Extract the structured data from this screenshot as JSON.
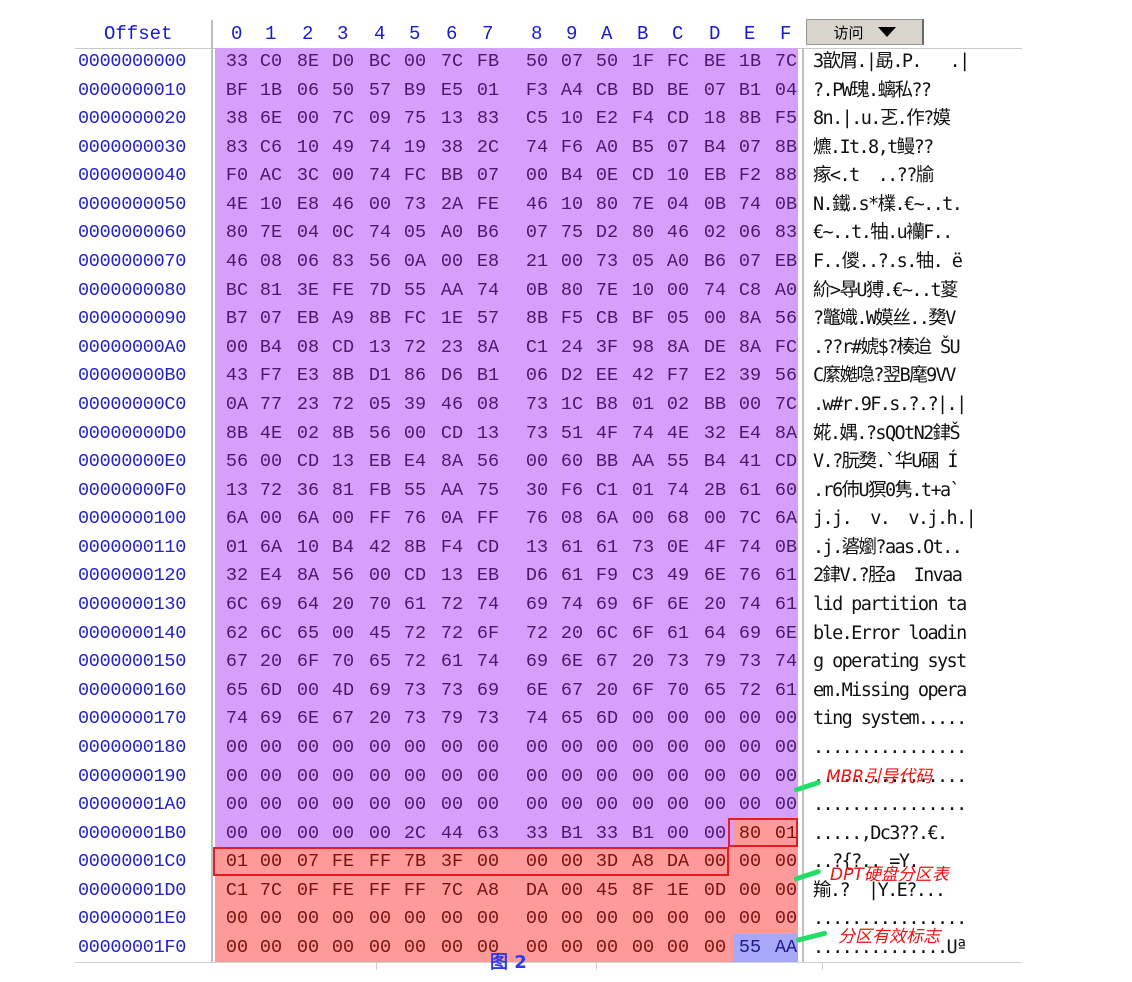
{
  "header": {
    "offset_label": "Offset",
    "hex_columns": [
      "0",
      "1",
      "2",
      "3",
      "4",
      "5",
      "6",
      "7",
      "8",
      "9",
      "A",
      "B",
      "C",
      "D",
      "E",
      "F"
    ],
    "access_button_label": "访问"
  },
  "colors": {
    "offset_text": "#2323c8",
    "mbr_boot_code_bg": "#d79ffc",
    "partition_table_bg": "#ff9a9a",
    "signature_bg": "#a8a8fa",
    "highlight_box": "#e41e1e",
    "annotation_text": "#ee1111",
    "leader_line": "#22dd66"
  },
  "rows": [
    {
      "offset": "0000000000",
      "hex": [
        "33",
        "C0",
        "8E",
        "D0",
        "BC",
        "00",
        "7C",
        "FB",
        "50",
        "07",
        "50",
        "1F",
        "FC",
        "BE",
        "1B",
        "7C"
      ],
      "text": "3歆屑.|勗.P.   .|"
    },
    {
      "offset": "0000000010",
      "hex": [
        "BF",
        "1B",
        "06",
        "50",
        "57",
        "B9",
        "E5",
        "01",
        "F3",
        "A4",
        "CB",
        "BD",
        "BE",
        "07",
        "B1",
        "04"
      ],
      "text": "?.PW瑰.螭私??"
    },
    {
      "offset": "0000000020",
      "hex": [
        "38",
        "6E",
        "00",
        "7C",
        "09",
        "75",
        "13",
        "83",
        "C5",
        "10",
        "E2",
        "F4",
        "CD",
        "18",
        "8B",
        "F5"
      ],
      "text": "8n.|.u.乤.作?嫫"
    },
    {
      "offset": "0000000030",
      "hex": [
        "83",
        "C6",
        "10",
        "49",
        "74",
        "19",
        "38",
        "2C",
        "74",
        "F6",
        "A0",
        "B5",
        "07",
        "B4",
        "07",
        "8B"
      ],
      "text": "爊.It.8,t鳗??"
    },
    {
      "offset": "0000000040",
      "hex": [
        "F0",
        "AC",
        "3C",
        "00",
        "74",
        "FC",
        "BB",
        "07",
        "00",
        "B4",
        "0E",
        "CD",
        "10",
        "EB",
        "F2",
        "88"
      ],
      "text": "瘃<.t  ..??牏"
    },
    {
      "offset": "0000000050",
      "hex": [
        "4E",
        "10",
        "E8",
        "46",
        "00",
        "73",
        "2A",
        "FE",
        "46",
        "10",
        "80",
        "7E",
        "04",
        "0B",
        "74",
        "0B"
      ],
      "text": "N.鐵.s*檏.€~..t."
    },
    {
      "offset": "0000000060",
      "hex": [
        "80",
        "7E",
        "04",
        "0C",
        "74",
        "05",
        "A0",
        "B6",
        "07",
        "75",
        "D2",
        "80",
        "46",
        "02",
        "06",
        "83"
      ],
      "text": "€~..t.牰.u襽F.."
    },
    {
      "offset": "0000000070",
      "hex": [
        "46",
        "08",
        "06",
        "83",
        "56",
        "0A",
        "00",
        "E8",
        "21",
        "00",
        "73",
        "05",
        "A0",
        "B6",
        "07",
        "EB"
      ],
      "text": "F..儍..?.s.牰. ë"
    },
    {
      "offset": "0000000080",
      "hex": [
        "BC",
        "81",
        "3E",
        "FE",
        "7D",
        "55",
        "AA",
        "74",
        "0B",
        "80",
        "7E",
        "10",
        "00",
        "74",
        "C8",
        "A0"
      ],
      "text": "紒>䙷U猼.€~..t葼"
    },
    {
      "offset": "0000000090",
      "hex": [
        "B7",
        "07",
        "EB",
        "A9",
        "8B",
        "FC",
        "1E",
        "57",
        "8B",
        "F5",
        "CB",
        "BF",
        "05",
        "00",
        "8A",
        "56"
      ],
      "text": "?鼈嬂.W嫫丝..奦V"
    },
    {
      "offset": "00000000A0",
      "hex": [
        "00",
        "B4",
        "08",
        "CD",
        "13",
        "72",
        "23",
        "8A",
        "C1",
        "24",
        "3F",
        "98",
        "8A",
        "DE",
        "8A",
        "FC"
      ],
      "text": ".??r#婋$?楱迨 ŠU"
    },
    {
      "offset": "00000000B0",
      "hex": [
        "43",
        "F7",
        "E3",
        "8B",
        "D1",
        "86",
        "D6",
        "B1",
        "06",
        "D2",
        "EE",
        "42",
        "F7",
        "E2",
        "39",
        "56"
      ],
      "text": "C縻嬔喼?翌B麾9VV"
    },
    {
      "offset": "00000000C0",
      "hex": [
        "0A",
        "77",
        "23",
        "72",
        "05",
        "39",
        "46",
        "08",
        "73",
        "1C",
        "B8",
        "01",
        "02",
        "BB",
        "00",
        "7C"
      ],
      "text": ".w#r.9F.s.?.?|.|"
    },
    {
      "offset": "00000000D0",
      "hex": [
        "8B",
        "4E",
        "02",
        "8B",
        "56",
        "00",
        "CD",
        "13",
        "73",
        "51",
        "4F",
        "74",
        "4E",
        "32",
        "E4",
        "8A"
      ],
      "text": "婲.媀.?sQOtN2銉Š"
    },
    {
      "offset": "00000000E0",
      "hex": [
        "56",
        "00",
        "CD",
        "13",
        "EB",
        "E4",
        "8A",
        "56",
        "00",
        "60",
        "BB",
        "AA",
        "55",
        "B4",
        "41",
        "CD"
      ],
      "text": "V.?朊奦.`华U碅 Í"
    },
    {
      "offset": "00000000F0",
      "hex": [
        "13",
        "72",
        "36",
        "81",
        "FB",
        "55",
        "AA",
        "75",
        "30",
        "F6",
        "C1",
        "01",
        "74",
        "2B",
        "61",
        "60"
      ],
      "text": ".r6伂U猽0隽.t+a`"
    },
    {
      "offset": "0000000100",
      "hex": [
        "6A",
        "00",
        "6A",
        "00",
        "FF",
        "76",
        "0A",
        "FF",
        "76",
        "08",
        "6A",
        "00",
        "68",
        "00",
        "7C",
        "6A"
      ],
      "text": "j.j.  v.  v.j.h.|"
    },
    {
      "offset": "0000000110",
      "hex": [
        "01",
        "6A",
        "10",
        "B4",
        "42",
        "8B",
        "F4",
        "CD",
        "13",
        "61",
        "61",
        "73",
        "0E",
        "4F",
        "74",
        "0B"
      ],
      "text": ".j.碆嬼?aas.Ot.."
    },
    {
      "offset": "0000000120",
      "hex": [
        "32",
        "E4",
        "8A",
        "56",
        "00",
        "CD",
        "13",
        "EB",
        "D6",
        "61",
        "F9",
        "C3",
        "49",
        "6E",
        "76",
        "61"
      ],
      "text": "2銉V.?胫a  Invaa"
    },
    {
      "offset": "0000000130",
      "hex": [
        "6C",
        "69",
        "64",
        "20",
        "70",
        "61",
        "72",
        "74",
        "69",
        "74",
        "69",
        "6F",
        "6E",
        "20",
        "74",
        "61"
      ],
      "text": "lid partition ta"
    },
    {
      "offset": "0000000140",
      "hex": [
        "62",
        "6C",
        "65",
        "00",
        "45",
        "72",
        "72",
        "6F",
        "72",
        "20",
        "6C",
        "6F",
        "61",
        "64",
        "69",
        "6E"
      ],
      "text": "ble.Error loadin"
    },
    {
      "offset": "0000000150",
      "hex": [
        "67",
        "20",
        "6F",
        "70",
        "65",
        "72",
        "61",
        "74",
        "69",
        "6E",
        "67",
        "20",
        "73",
        "79",
        "73",
        "74"
      ],
      "text": "g operating syst"
    },
    {
      "offset": "0000000160",
      "hex": [
        "65",
        "6D",
        "00",
        "4D",
        "69",
        "73",
        "73",
        "69",
        "6E",
        "67",
        "20",
        "6F",
        "70",
        "65",
        "72",
        "61"
      ],
      "text": "em.Missing opera"
    },
    {
      "offset": "0000000170",
      "hex": [
        "74",
        "69",
        "6E",
        "67",
        "20",
        "73",
        "79",
        "73",
        "74",
        "65",
        "6D",
        "00",
        "00",
        "00",
        "00",
        "00"
      ],
      "text": "ting system....."
    },
    {
      "offset": "0000000180",
      "hex": [
        "00",
        "00",
        "00",
        "00",
        "00",
        "00",
        "00",
        "00",
        "00",
        "00",
        "00",
        "00",
        "00",
        "00",
        "00",
        "00"
      ],
      "text": "................"
    },
    {
      "offset": "0000000190",
      "hex": [
        "00",
        "00",
        "00",
        "00",
        "00",
        "00",
        "00",
        "00",
        "00",
        "00",
        "00",
        "00",
        "00",
        "00",
        "00",
        "00"
      ],
      "text": "................"
    },
    {
      "offset": "00000001A0",
      "hex": [
        "00",
        "00",
        "00",
        "00",
        "00",
        "00",
        "00",
        "00",
        "00",
        "00",
        "00",
        "00",
        "00",
        "00",
        "00",
        "00"
      ],
      "text": "................"
    },
    {
      "offset": "00000001B0",
      "hex": [
        "00",
        "00",
        "00",
        "00",
        "00",
        "2C",
        "44",
        "63",
        "33",
        "B1",
        "33",
        "B1",
        "00",
        "00",
        "80",
        "01"
      ],
      "text": ".....,Dc3??.€."
    },
    {
      "offset": "00000001C0",
      "hex": [
        "01",
        "00",
        "07",
        "FE",
        "FF",
        "7B",
        "3F",
        "00",
        "00",
        "00",
        "3D",
        "A8",
        "DA",
        "00",
        "00",
        "00"
      ],
      "text": "..?{?.. =Y."
    },
    {
      "offset": "00000001D0",
      "hex": [
        "C1",
        "7C",
        "0F",
        "FE",
        "FF",
        "FF",
        "7C",
        "A8",
        "DA",
        "00",
        "45",
        "8F",
        "1E",
        "0D",
        "00",
        "00"
      ],
      "text": "羭.?  |Y.E?..."
    },
    {
      "offset": "00000001E0",
      "hex": [
        "00",
        "00",
        "00",
        "00",
        "00",
        "00",
        "00",
        "00",
        "00",
        "00",
        "00",
        "00",
        "00",
        "00",
        "00",
        "00"
      ],
      "text": "................"
    },
    {
      "offset": "00000001F0",
      "hex": [
        "00",
        "00",
        "00",
        "00",
        "00",
        "00",
        "00",
        "00",
        "00",
        "00",
        "00",
        "00",
        "00",
        "00",
        "55",
        "AA"
      ],
      "text": "..............Uª"
    }
  ],
  "regions": {
    "boot_code": {
      "start": "0x000",
      "end": "0x1BD"
    },
    "partition_table": {
      "start": "0x1BE",
      "end": "0x1FD"
    },
    "signature": {
      "start": "0x1FE",
      "end": "0x1FF",
      "bytes": "55 AA"
    }
  },
  "annotations": {
    "mbr_boot_code": "MBR引导代码",
    "dpt_partition_table": "DPT硬盘分区表",
    "partition_valid_flag": "分区有效标志"
  },
  "caption": "图 2"
}
